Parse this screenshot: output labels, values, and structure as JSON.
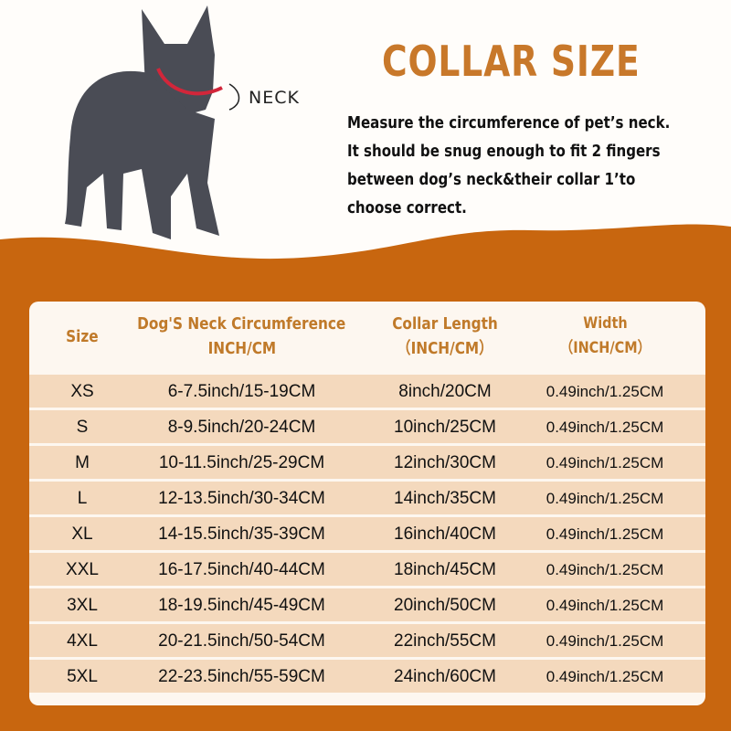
{
  "colors": {
    "orange": "#c8660f",
    "title": "#c8782a",
    "header_text": "#c07a2a",
    "row_bg": "#f4d9bd"
  },
  "image": {
    "subject": "french-bulldog-with-red-collar",
    "neck_label": "NECK"
  },
  "title": "COLLAR SIZE",
  "description": [
    "Measure the circumference of pet’s neck.",
    "It should be snug enough to fit 2 fingers",
    "between dog’s neck&their collar 1’to",
    "choose correct."
  ],
  "table": {
    "headers": [
      [
        "Size"
      ],
      [
        "Dog'S Neck Circumference",
        "INCH/CM"
      ],
      [
        "Collar Length",
        "（INCH/CM）"
      ],
      [
        "Width",
        "（INCH/CM）"
      ]
    ],
    "rows": [
      [
        "XS",
        "6-7.5inch/15-19CM",
        "8inch/20CM",
        "0.49inch/1.25CM"
      ],
      [
        "S",
        "8-9.5inch/20-24CM",
        "10inch/25CM",
        "0.49inch/1.25CM"
      ],
      [
        "M",
        "10-11.5inch/25-29CM",
        "12inch/30CM",
        "0.49inch/1.25CM"
      ],
      [
        "L",
        "12-13.5inch/30-34CM",
        "14inch/35CM",
        "0.49inch/1.25CM"
      ],
      [
        "XL",
        "14-15.5inch/35-39CM",
        "16inch/40CM",
        "0.49inch/1.25CM"
      ],
      [
        "XXL",
        "16-17.5inch/40-44CM",
        "18inch/45CM",
        "0.49inch/1.25CM"
      ],
      [
        "3XL",
        "18-19.5inch/45-49CM",
        "20inch/50CM",
        "0.49inch/1.25CM"
      ],
      [
        "4XL",
        "20-21.5inch/50-54CM",
        "22inch/55CM",
        "0.49inch/1.25CM"
      ],
      [
        "5XL",
        "22-23.5inch/55-59CM",
        "24inch/60CM",
        "0.49inch/1.25CM"
      ]
    ]
  }
}
